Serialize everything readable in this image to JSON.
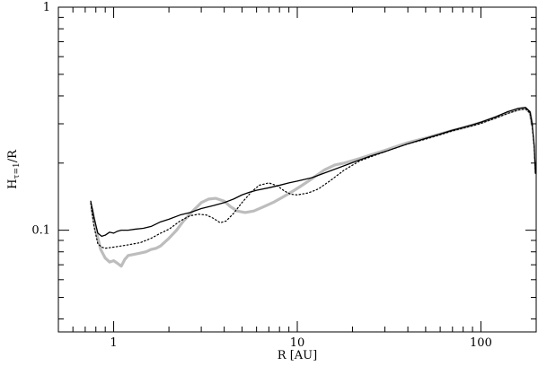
{
  "chart_data": {
    "type": "line",
    "xlabel": "R [AU]",
    "ylabel_main": "H",
    "ylabel_sub": "τ=1",
    "ylabel_tail": "/R",
    "xscale": "log",
    "yscale": "log",
    "xlim": [
      0.5,
      200
    ],
    "ylim": [
      0.035,
      1
    ],
    "grid": false,
    "x_ticks": [
      {
        "value": 1,
        "label": "1"
      },
      {
        "value": 10,
        "label": "10"
      },
      {
        "value": 100,
        "label": "100"
      }
    ],
    "y_ticks": [
      {
        "value": 0.1,
        "label": "0.1"
      },
      {
        "value": 1,
        "label": "1"
      }
    ],
    "series": [
      {
        "style": "solid-black",
        "color": "#000000",
        "points": [
          [
            0.75,
            0.135
          ],
          [
            0.78,
            0.115
          ],
          [
            0.82,
            0.097
          ],
          [
            0.86,
            0.094
          ],
          [
            0.9,
            0.095
          ],
          [
            0.95,
            0.098
          ],
          [
            1.0,
            0.097
          ],
          [
            1.05,
            0.099
          ],
          [
            1.1,
            0.1
          ],
          [
            1.2,
            0.1
          ],
          [
            1.3,
            0.101
          ],
          [
            1.45,
            0.102
          ],
          [
            1.6,
            0.104
          ],
          [
            1.8,
            0.109
          ],
          [
            2.0,
            0.112
          ],
          [
            2.3,
            0.117
          ],
          [
            2.6,
            0.12
          ],
          [
            3.0,
            0.125
          ],
          [
            3.5,
            0.129
          ],
          [
            4.0,
            0.133
          ],
          [
            4.5,
            0.138
          ],
          [
            5.0,
            0.144
          ],
          [
            5.5,
            0.148
          ],
          [
            6.0,
            0.151
          ],
          [
            7.0,
            0.155
          ],
          [
            8.0,
            0.159
          ],
          [
            9.0,
            0.163
          ],
          [
            10.0,
            0.166
          ],
          [
            12.0,
            0.172
          ],
          [
            15.0,
            0.184
          ],
          [
            20.0,
            0.201
          ],
          [
            25.0,
            0.215
          ],
          [
            30.0,
            0.225
          ],
          [
            40.0,
            0.244
          ],
          [
            50.0,
            0.258
          ],
          [
            60.0,
            0.27
          ],
          [
            70.0,
            0.281
          ],
          [
            80.0,
            0.289
          ],
          [
            90.0,
            0.297
          ],
          [
            100.0,
            0.305
          ],
          [
            120.0,
            0.322
          ],
          [
            140.0,
            0.34
          ],
          [
            160.0,
            0.352
          ],
          [
            175.0,
            0.355
          ],
          [
            185.0,
            0.34
          ],
          [
            190.0,
            0.3
          ],
          [
            195.0,
            0.24
          ],
          [
            198.0,
            0.18
          ]
        ]
      },
      {
        "style": "dotted-black",
        "color": "#000000",
        "points": [
          [
            0.75,
            0.132
          ],
          [
            0.78,
            0.105
          ],
          [
            0.82,
            0.087
          ],
          [
            0.86,
            0.084
          ],
          [
            0.9,
            0.083
          ],
          [
            1.0,
            0.084
          ],
          [
            1.1,
            0.085
          ],
          [
            1.2,
            0.086
          ],
          [
            1.4,
            0.088
          ],
          [
            1.6,
            0.092
          ],
          [
            1.8,
            0.097
          ],
          [
            2.0,
            0.101
          ],
          [
            2.3,
            0.11
          ],
          [
            2.6,
            0.116
          ],
          [
            2.9,
            0.118
          ],
          [
            3.2,
            0.117
          ],
          [
            3.5,
            0.113
          ],
          [
            3.8,
            0.108
          ],
          [
            4.1,
            0.11
          ],
          [
            4.5,
            0.119
          ],
          [
            5.0,
            0.133
          ],
          [
            5.6,
            0.148
          ],
          [
            6.2,
            0.159
          ],
          [
            7.0,
            0.163
          ],
          [
            7.8,
            0.158
          ],
          [
            8.5,
            0.15
          ],
          [
            9.2,
            0.145
          ],
          [
            10.0,
            0.144
          ],
          [
            11.5,
            0.147
          ],
          [
            13.0,
            0.153
          ],
          [
            15.0,
            0.166
          ],
          [
            18.0,
            0.186
          ],
          [
            22.0,
            0.205
          ],
          [
            30.0,
            0.225
          ],
          [
            40.0,
            0.244
          ],
          [
            50.0,
            0.256
          ],
          [
            60.0,
            0.268
          ],
          [
            70.0,
            0.279
          ],
          [
            80.0,
            0.287
          ],
          [
            90.0,
            0.294
          ],
          [
            100.0,
            0.301
          ],
          [
            120.0,
            0.318
          ],
          [
            140.0,
            0.334
          ],
          [
            160.0,
            0.346
          ],
          [
            175.0,
            0.35
          ],
          [
            185.0,
            0.335
          ],
          [
            190.0,
            0.295
          ],
          [
            195.0,
            0.235
          ],
          [
            198.0,
            0.18
          ]
        ]
      },
      {
        "style": "thick-gray",
        "color": "#bdbdbd",
        "points": [
          [
            0.76,
            0.125
          ],
          [
            0.8,
            0.1
          ],
          [
            0.85,
            0.082
          ],
          [
            0.9,
            0.075
          ],
          [
            0.95,
            0.072
          ],
          [
            1.0,
            0.073
          ],
          [
            1.05,
            0.071
          ],
          [
            1.1,
            0.069
          ],
          [
            1.15,
            0.074
          ],
          [
            1.2,
            0.077
          ],
          [
            1.3,
            0.078
          ],
          [
            1.4,
            0.079
          ],
          [
            1.5,
            0.08
          ],
          [
            1.6,
            0.082
          ],
          [
            1.7,
            0.083
          ],
          [
            1.8,
            0.085
          ],
          [
            2.0,
            0.092
          ],
          [
            2.2,
            0.1
          ],
          [
            2.4,
            0.11
          ],
          [
            2.7,
            0.122
          ],
          [
            3.0,
            0.133
          ],
          [
            3.3,
            0.138
          ],
          [
            3.6,
            0.139
          ],
          [
            4.0,
            0.135
          ],
          [
            4.3,
            0.128
          ],
          [
            4.7,
            0.122
          ],
          [
            5.2,
            0.12
          ],
          [
            5.8,
            0.122
          ],
          [
            6.5,
            0.127
          ],
          [
            7.5,
            0.134
          ],
          [
            8.5,
            0.142
          ],
          [
            9.5,
            0.15
          ],
          [
            10.5,
            0.158
          ],
          [
            12.0,
            0.17
          ],
          [
            14.0,
            0.186
          ],
          [
            16.0,
            0.196
          ],
          [
            18.0,
            0.2
          ],
          [
            22.0,
            0.21
          ],
          [
            30.0,
            0.228
          ],
          [
            40.0,
            0.247
          ],
          [
            50.0,
            0.259
          ],
          [
            60.0,
            0.27
          ],
          [
            70.0,
            0.28
          ],
          [
            80.0,
            0.288
          ],
          [
            90.0,
            0.296
          ],
          [
            100.0,
            0.304
          ],
          [
            120.0,
            0.32
          ],
          [
            140.0,
            0.336
          ],
          [
            160.0,
            0.348
          ],
          [
            175.0,
            0.352
          ],
          [
            185.0,
            0.337
          ],
          [
            190.0,
            0.297
          ]
        ]
      }
    ]
  }
}
